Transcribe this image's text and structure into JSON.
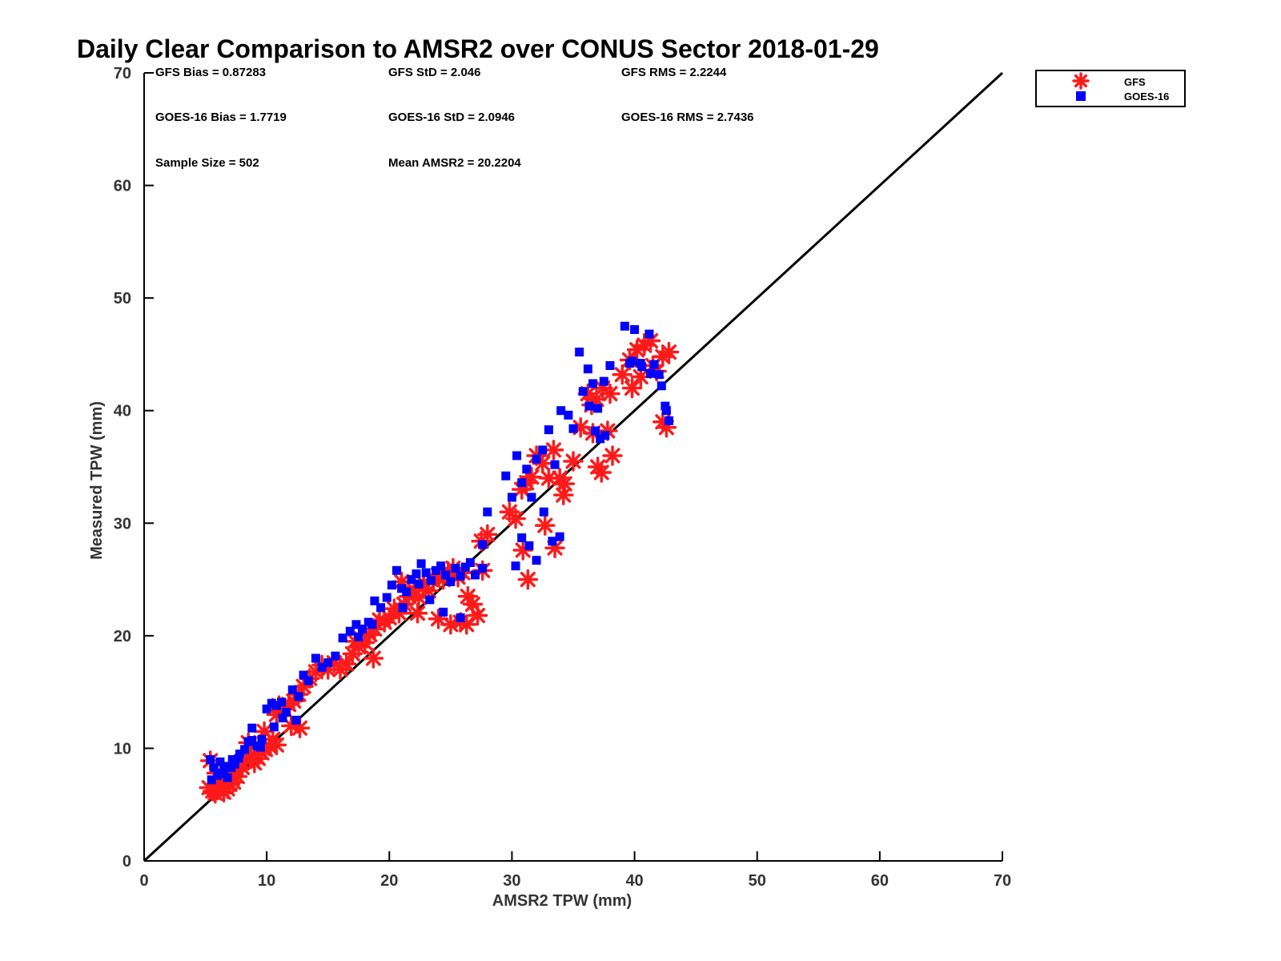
{
  "chart_data": {
    "type": "scatter",
    "title": "Daily Clear Comparison to AMSR2 over CONUS Sector 2018-01-29",
    "xlabel": "AMSR2 TPW (mm)",
    "ylabel": "Measured TPW (mm)",
    "xlim": [
      0,
      70
    ],
    "ylim": [
      0,
      70
    ],
    "xticks": [
      "0",
      "10",
      "20",
      "30",
      "40",
      "50",
      "60",
      "70"
    ],
    "yticks": [
      "0",
      "10",
      "20",
      "30",
      "40",
      "50",
      "60",
      "70"
    ],
    "legend_position": "top-right-outside",
    "grid": false,
    "reference_line": {
      "name": "1:1",
      "x": [
        0,
        70
      ],
      "y": [
        0,
        70
      ],
      "color": "#000000"
    },
    "stats": {
      "gfs_bias": "GFS Bias = 0.87283",
      "gfs_std": "GFS StD = 2.046",
      "gfs_rms": "GFS RMS = 2.2244",
      "goes_bias": "GOES-16 Bias = 1.7719",
      "goes_std": "GOES-16 StD = 2.0946",
      "goes_rms": "GOES-16 RMS = 2.7436",
      "sample_size": "Sample Size = 502",
      "mean_amsr2": "Mean AMSR2 = 20.2204"
    },
    "series": [
      {
        "name": "GFS",
        "marker": "asterisk",
        "color": "#ff1a1a",
        "x": [
          5.3,
          5.6,
          5.8,
          6.0,
          6.3,
          6.5,
          6.8,
          7.0,
          7.3,
          7.6,
          5.4,
          5.9,
          6.4,
          6.9,
          7.4,
          8.0,
          8.3,
          8.7,
          9.0,
          9.3,
          9.6,
          9.9,
          10.2,
          10.5,
          10.8,
          11.0,
          11.4,
          11.8,
          12.2,
          12.6,
          13.0,
          13.5,
          14.0,
          14.5,
          15.0,
          15.5,
          16.0,
          16.5,
          17.0,
          17.5,
          18.0,
          18.4,
          18.8,
          19.2,
          19.6,
          20.0,
          20.4,
          20.8,
          21.2,
          21.6,
          22.0,
          22.4,
          22.8,
          23.2,
          23.6,
          24.0,
          24.4,
          24.8,
          25.2,
          25.6,
          26.0,
          26.4,
          26.8,
          27.2,
          27.6,
          28.0,
          25.8,
          26.3,
          27.5,
          29.8,
          30.3,
          30.8,
          31.2,
          31.6,
          32.0,
          32.5,
          33.0,
          33.4,
          33.9,
          34.3,
          30.9,
          31.3,
          32.7,
          33.5,
          34.2,
          35.0,
          35.6,
          36.2,
          36.6,
          37.0,
          37.3,
          37.8,
          38.2,
          36.5,
          36.9,
          37.4,
          38.0,
          39.0,
          39.6,
          40.2,
          40.8,
          41.3,
          41.8,
          42.3,
          42.8,
          39.8,
          40.5,
          41.5,
          42.3,
          42.6,
          8.5,
          9.8,
          10.8,
          12.0,
          12.7,
          17.2,
          18.7,
          21.0,
          22.3,
          24.0,
          25.0
        ],
        "y": [
          6.5,
          6.2,
          6.0,
          6.3,
          6.6,
          6.1,
          6.4,
          6.8,
          7.0,
          7.5,
          8.9,
          7.8,
          7.1,
          7.9,
          8.0,
          8.3,
          8.9,
          9.4,
          8.7,
          9.1,
          9.6,
          9.9,
          10.2,
          10.8,
          13.0,
          13.8,
          13.5,
          13.9,
          14.2,
          14.8,
          15.5,
          16.2,
          16.8,
          17.4,
          17.0,
          17.6,
          17.0,
          17.5,
          18.4,
          19.0,
          19.4,
          20.1,
          20.6,
          21.4,
          21.2,
          21.6,
          22.4,
          22.0,
          22.8,
          23.5,
          24.1,
          23.4,
          24.7,
          24.0,
          24.9,
          25.4,
          25.0,
          25.7,
          26.0,
          25.2,
          25.6,
          23.5,
          22.8,
          21.8,
          25.8,
          29.0,
          21.2,
          21.0,
          28.4,
          31.0,
          30.4,
          33.0,
          33.6,
          34.1,
          36.0,
          35.3,
          34.0,
          36.5,
          34.0,
          33.5,
          27.6,
          25.0,
          29.8,
          27.8,
          32.5,
          35.5,
          38.5,
          41.5,
          38.0,
          35.0,
          34.5,
          38.2,
          36.0,
          40.5,
          41.0,
          42.0,
          41.5,
          43.2,
          44.5,
          45.4,
          45.8,
          46.2,
          43.5,
          44.8,
          45.2,
          42.0,
          43.0,
          44.0,
          39.0,
          38.5,
          10.5,
          11.5,
          10.3,
          12.0,
          11.8,
          19.5,
          18.0,
          24.8,
          22.0,
          21.5,
          21.0
        ]
      },
      {
        "name": "GOES-16",
        "marker": "square",
        "color": "#0000ff",
        "x": [
          5.4,
          5.7,
          6.0,
          6.2,
          6.5,
          6.8,
          7.1,
          7.4,
          7.7,
          5.5,
          6.1,
          6.6,
          7.2,
          7.8,
          8.2,
          8.5,
          8.8,
          9.2,
          9.6,
          10.0,
          10.4,
          10.8,
          11.2,
          11.6,
          12.1,
          12.6,
          13.0,
          13.4,
          14.0,
          14.5,
          15.0,
          15.6,
          16.2,
          16.8,
          17.3,
          17.8,
          18.3,
          18.8,
          19.3,
          19.8,
          20.2,
          20.6,
          21.0,
          21.4,
          21.8,
          22.2,
          22.6,
          23.0,
          23.4,
          23.8,
          24.2,
          24.6,
          25.0,
          25.4,
          25.8,
          26.2,
          26.6,
          27.0,
          27.6,
          28.0,
          29.5,
          30.0,
          30.4,
          30.8,
          31.2,
          31.6,
          32.0,
          32.5,
          33.0,
          33.5,
          34.0,
          34.6,
          35.0,
          35.5,
          35.8,
          36.2,
          36.6,
          37.0,
          37.5,
          38.0,
          30.3,
          30.8,
          31.4,
          32.0,
          32.6,
          33.3,
          33.9,
          36.3,
          36.8,
          37.2,
          37.6,
          39.2,
          39.6,
          40.0,
          40.6,
          41.2,
          41.6,
          42.0,
          42.6,
          42.8,
          39.8,
          40.5,
          41.3,
          42.2,
          42.5,
          8.8,
          9.5,
          10.6,
          11.3,
          12.4,
          17.5,
          18.6,
          21.1,
          22.4,
          23.3,
          24.4,
          25.8,
          27.6
        ],
        "y": [
          9.0,
          8.3,
          7.6,
          8.8,
          8.0,
          7.4,
          8.3,
          8.6,
          9.1,
          7.2,
          7.8,
          8.4,
          9.0,
          9.5,
          9.9,
          10.6,
          11.8,
          10.2,
          10.8,
          13.5,
          14.0,
          13.8,
          14.1,
          13.2,
          15.2,
          14.6,
          16.5,
          16.0,
          18.0,
          17.2,
          17.6,
          18.2,
          19.8,
          20.4,
          21.0,
          20.6,
          21.2,
          23.1,
          22.5,
          23.4,
          24.5,
          25.8,
          24.2,
          23.9,
          25.0,
          25.5,
          26.4,
          25.6,
          24.9,
          25.8,
          26.2,
          25.4,
          24.8,
          26.0,
          25.3,
          26.1,
          26.5,
          25.4,
          26.0,
          31.0,
          34.2,
          32.3,
          36.0,
          33.6,
          34.8,
          32.3,
          35.7,
          36.5,
          38.3,
          35.2,
          40.0,
          39.6,
          38.4,
          45.2,
          41.7,
          43.7,
          42.4,
          40.2,
          42.6,
          44.0,
          26.2,
          28.7,
          28.0,
          26.7,
          31.0,
          28.4,
          28.8,
          40.4,
          38.2,
          37.5,
          37.8,
          47.5,
          44.2,
          47.2,
          43.9,
          46.8,
          44.1,
          43.2,
          40.0,
          39.1,
          44.4,
          44.2,
          43.3,
          42.2,
          40.4,
          10.7,
          10.1,
          11.9,
          12.7,
          12.5,
          19.9,
          21.0,
          22.5,
          24.6,
          23.2,
          22.1,
          21.6,
          28.1
        ]
      }
    ]
  }
}
